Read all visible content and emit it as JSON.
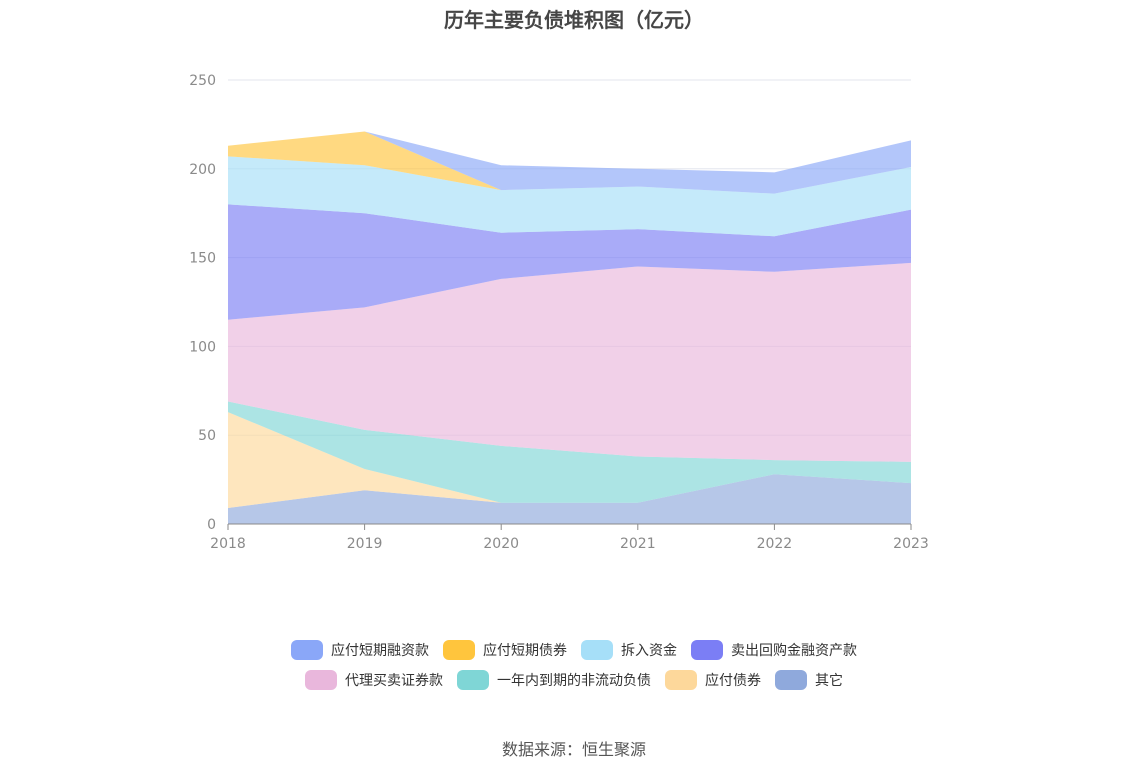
{
  "chart_data": {
    "type": "area",
    "stacked": true,
    "title": "历年主要负债堆积图（亿元）",
    "xlabel": "",
    "ylabel": "",
    "categories": [
      "2018",
      "2019",
      "2020",
      "2021",
      "2022",
      "2023"
    ],
    "ylim": [
      0,
      250
    ],
    "yticks": [
      0,
      50,
      100,
      150,
      200,
      250
    ],
    "grid": true,
    "legend_position": "bottom",
    "series": [
      {
        "name": "其它",
        "color": "#8fa9dc",
        "values": [
          9,
          19,
          12,
          12,
          28,
          23
        ]
      },
      {
        "name": "应付债券",
        "color": "#fdd89b",
        "values": [
          54,
          12,
          0,
          0,
          0,
          0
        ]
      },
      {
        "name": "一年内到期的非流动负债",
        "color": "#7fd6d6",
        "values": [
          6,
          22,
          32,
          26,
          8,
          12
        ]
      },
      {
        "name": "代理买卖证券款",
        "color": "#e9b7dc",
        "values": [
          46,
          69,
          94,
          107,
          106,
          112
        ]
      },
      {
        "name": "卖出回购金融资产款",
        "color": "#7b7ef5",
        "values": [
          65,
          53,
          26,
          21,
          20,
          30
        ]
      },
      {
        "name": "拆入资金",
        "color": "#a6dff8",
        "values": [
          27,
          27,
          24,
          24,
          24,
          24
        ]
      },
      {
        "name": "应付短期债券",
        "color": "#ffc53d",
        "values": [
          6,
          19,
          0,
          0,
          0,
          0
        ]
      },
      {
        "name": "应付短期融资款",
        "color": "#8aa7f8",
        "values": [
          0,
          0,
          14,
          10,
          12,
          15
        ]
      }
    ]
  },
  "legend": {
    "rows": [
      [
        {
          "label": "应付短期融资款",
          "color": "#8aa7f8"
        },
        {
          "label": "应付短期债券",
          "color": "#ffc53d"
        },
        {
          "label": "拆入资金",
          "color": "#a6dff8"
        },
        {
          "label": "卖出回购金融资产款",
          "color": "#7b7ef5"
        }
      ],
      [
        {
          "label": "代理买卖证券款",
          "color": "#e9b7dc"
        },
        {
          "label": "一年内到期的非流动负债",
          "color": "#7fd6d6"
        },
        {
          "label": "应付债券",
          "color": "#fdd89b"
        },
        {
          "label": "其它",
          "color": "#8fa9dc"
        }
      ]
    ]
  },
  "source": "数据来源：恒生聚源"
}
